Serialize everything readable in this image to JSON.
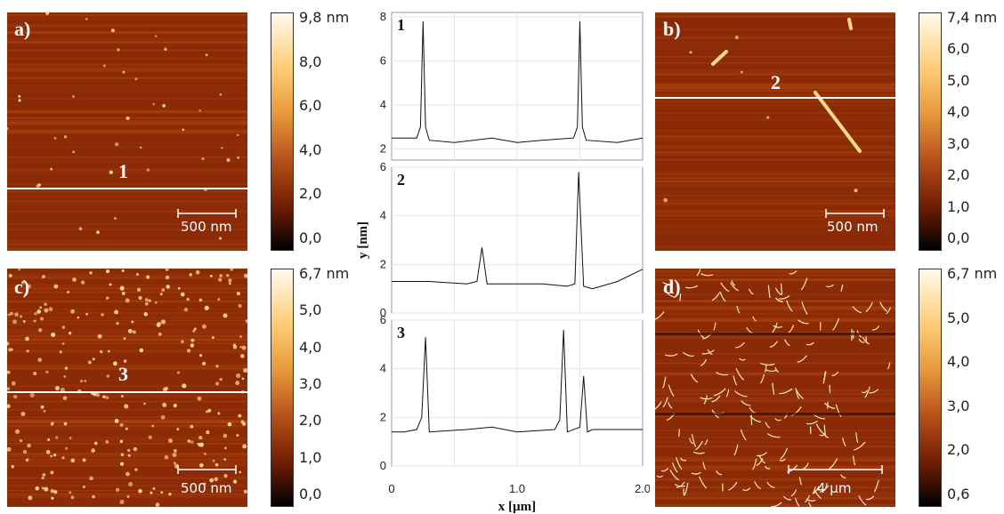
{
  "panels": [
    {
      "label": "a)",
      "line_label": "1",
      "scalebar": "500 nm"
    },
    {
      "label": "b)",
      "line_label": "2",
      "scalebar": "500 nm"
    },
    {
      "label": "c)",
      "line_label": "3",
      "scalebar": "500 nm"
    },
    {
      "label": "d)",
      "line_label": "",
      "scalebar": "4 µm"
    }
  ],
  "colorbars": [
    {
      "ticks": [
        "9,8 nm",
        "8,0",
        "6,0",
        "4,0",
        "2,0",
        "0,0"
      ]
    },
    {
      "ticks": [
        "7,4 nm",
        "6,0",
        "5,0",
        "4,0",
        "3,0",
        "2,0",
        "1,0",
        "0,0"
      ]
    },
    {
      "ticks": [
        "6,7 nm",
        "5,0",
        "4,0",
        "3,0",
        "2,0",
        "1,0",
        "0,0"
      ]
    },
    {
      "ticks": [
        "6,7 nm",
        "5,0",
        "4,0",
        "3,0",
        "2,0",
        "0,6"
      ]
    }
  ],
  "colors": {
    "afm_dark": "#8a2a06",
    "afm_mid": "#b24a12",
    "feature": "#ffd98a",
    "line": "#ffffff"
  },
  "chart_data": [
    {
      "type": "line",
      "profile_label": "1",
      "ylim": [
        1.5,
        8.2
      ],
      "yticks": [
        "2",
        "4",
        "6",
        "8"
      ],
      "x": [
        0,
        0.2,
        0.23,
        0.25,
        0.27,
        0.3,
        0.5,
        0.8,
        1.0,
        1.2,
        1.45,
        1.48,
        1.5,
        1.52,
        1.55,
        1.8,
        2.0
      ],
      "y": [
        2.5,
        2.5,
        3,
        7.8,
        3,
        2.4,
        2.3,
        2.5,
        2.3,
        2.4,
        2.5,
        3,
        7.8,
        3,
        2.4,
        2.3,
        2.5
      ]
    },
    {
      "type": "line",
      "profile_label": "2",
      "ylim": [
        0,
        6
      ],
      "yticks": [
        "0",
        "2",
        "4",
        "6"
      ],
      "x": [
        0,
        0.3,
        0.6,
        0.68,
        0.72,
        0.76,
        0.9,
        1.2,
        1.4,
        1.46,
        1.49,
        1.53,
        1.6,
        1.8,
        2.0
      ],
      "y": [
        1.3,
        1.3,
        1.2,
        1.3,
        2.7,
        1.2,
        1.2,
        1.2,
        1.1,
        1.2,
        5.8,
        1.1,
        1.0,
        1.3,
        1.8
      ]
    },
    {
      "type": "line",
      "profile_label": "3",
      "ylim": [
        0,
        6
      ],
      "yticks": [
        "0",
        "2",
        "4",
        "6"
      ],
      "x": [
        0,
        0.1,
        0.2,
        0.24,
        0.27,
        0.3,
        0.6,
        0.8,
        1.0,
        1.3,
        1.34,
        1.37,
        1.4,
        1.5,
        1.53,
        1.56,
        1.6,
        1.8,
        2.0
      ],
      "y": [
        1.4,
        1.4,
        1.5,
        2.0,
        5.3,
        1.4,
        1.5,
        1.6,
        1.4,
        1.5,
        1.9,
        5.6,
        1.4,
        1.6,
        3.7,
        1.4,
        1.5,
        1.5,
        1.5
      ]
    }
  ],
  "axes": {
    "ylabel": "y [nm]",
    "xlabel": "x [µm]",
    "xticks": [
      "0",
      "1.0",
      "2.0"
    ]
  }
}
